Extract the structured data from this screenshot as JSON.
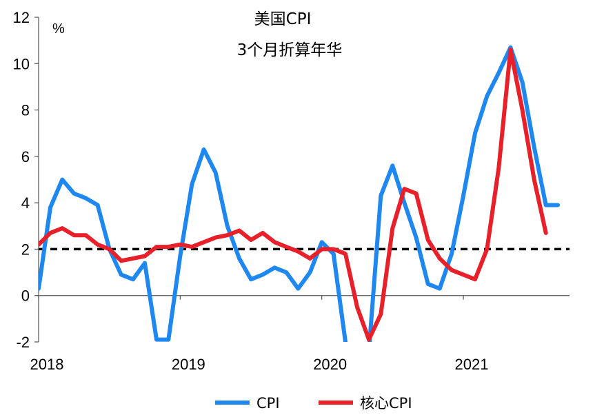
{
  "chart_data": {
    "type": "line",
    "title": "美国CPI",
    "subtitle": "3个月折算年华",
    "unit_label": "%",
    "ylim": [
      -2,
      12
    ],
    "yticks": [
      12,
      10,
      8,
      6,
      4,
      2,
      0,
      -2
    ],
    "ytick_labels": [
      "12",
      "10",
      "8",
      "6",
      "4",
      "2",
      "0",
      "-2"
    ],
    "xlim": [
      2018.0,
      2021.75
    ],
    "xticks": [
      2018,
      2019,
      2020,
      2021
    ],
    "xtick_labels": [
      "2018",
      "2019",
      "2020",
      "2021"
    ],
    "reference_line": {
      "y": 2,
      "style": "dashed",
      "color": "#000000"
    },
    "legend_position": "bottom-center",
    "series": [
      {
        "name": "CPI",
        "color": "#1E88F0",
        "x": [
          2018.0,
          2018.083,
          2018.167,
          2018.25,
          2018.333,
          2018.417,
          2018.5,
          2018.583,
          2018.667,
          2018.75,
          2018.833,
          2018.917,
          2019.0,
          2019.083,
          2019.167,
          2019.25,
          2019.333,
          2019.417,
          2019.5,
          2019.583,
          2019.667,
          2019.75,
          2019.833,
          2019.917,
          2020.0,
          2020.083,
          2020.167,
          2020.25,
          2020.333,
          2020.417,
          2020.5,
          2020.583,
          2020.667,
          2020.75,
          2020.833,
          2020.917,
          2021.0,
          2021.083,
          2021.167,
          2021.25,
          2021.333,
          2021.417,
          2021.5,
          2021.583,
          2021.667
        ],
        "values": [
          0.3,
          3.8,
          5.0,
          4.4,
          4.2,
          3.9,
          2.0,
          0.9,
          0.7,
          1.4,
          -1.9,
          -1.9,
          1.7,
          4.8,
          6.3,
          5.3,
          3.0,
          1.6,
          0.7,
          0.9,
          1.2,
          1.0,
          0.3,
          1.0,
          2.3,
          1.8,
          -2.0,
          -3.0,
          -2.4,
          4.3,
          5.6,
          4.0,
          2.5,
          0.5,
          0.3,
          1.8,
          4.3,
          7.0,
          8.6,
          9.6,
          10.7,
          9.2,
          6.4,
          3.9,
          3.9
        ]
      },
      {
        "name": "核心CPI",
        "color": "#E8202A",
        "x": [
          2018.0,
          2018.083,
          2018.167,
          2018.25,
          2018.333,
          2018.417,
          2018.5,
          2018.583,
          2018.667,
          2018.75,
          2018.833,
          2018.917,
          2019.0,
          2019.083,
          2019.167,
          2019.25,
          2019.333,
          2019.417,
          2019.5,
          2019.583,
          2019.667,
          2019.75,
          2019.833,
          2019.917,
          2020.0,
          2020.083,
          2020.167,
          2020.25,
          2020.333,
          2020.417,
          2020.5,
          2020.583,
          2020.667,
          2020.75,
          2020.833,
          2020.917,
          2021.0,
          2021.083,
          2021.167,
          2021.25,
          2021.333,
          2021.417,
          2021.5,
          2021.583
        ],
        "values": [
          2.2,
          2.7,
          2.9,
          2.6,
          2.6,
          2.2,
          2.0,
          1.5,
          1.6,
          1.7,
          2.1,
          2.1,
          2.2,
          2.1,
          2.3,
          2.5,
          2.6,
          2.8,
          2.4,
          2.7,
          2.3,
          2.1,
          1.9,
          1.6,
          2.0,
          2.0,
          1.8,
          -0.5,
          -1.9,
          -0.8,
          2.9,
          4.6,
          4.4,
          2.4,
          1.6,
          1.1,
          0.9,
          0.7,
          2.0,
          5.5,
          10.6,
          8.0,
          5.0,
          2.7
        ]
      }
    ]
  }
}
